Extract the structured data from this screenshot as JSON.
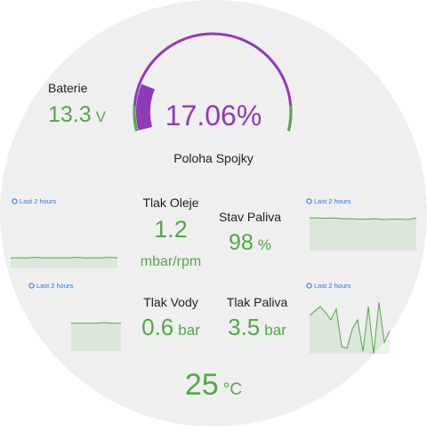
{
  "gauge": {
    "title": "Poloha Spojky",
    "value": 17.06,
    "unit": "%",
    "min": 0,
    "max": 100,
    "color": "#8f3bb8",
    "thresholds": [
      {
        "from": 0,
        "to": 9,
        "color": "#56a64b"
      },
      {
        "from": 91,
        "to": 100,
        "color": "#56a64b"
      }
    ]
  },
  "value_color": "#56a64b",
  "stats": [
    {
      "label": "Baterie",
      "value": 13.3,
      "unit": "V"
    },
    {
      "label": "Tlak Oleje",
      "value": 1.2,
      "unit": "mbar/rpm"
    },
    {
      "label": "Stav Paliva",
      "value": 98,
      "unit": "%"
    },
    {
      "label": "Tlak Vody",
      "value": 0.6,
      "unit": "bar"
    },
    {
      "label": "Tlak Paliva",
      "value": 3.5,
      "unit": "bar"
    },
    {
      "value": 25,
      "unit": "°C"
    }
  ],
  "sparklines": [
    {
      "time_range": "Last 2 hours",
      "ylim": [
        0,
        100
      ],
      "values": [
        18,
        18,
        18,
        19,
        18,
        18,
        18,
        18,
        19,
        18,
        18,
        18,
        19,
        18
      ]
    },
    {
      "time_range": "Last 2 hours",
      "ylim": [
        0,
        100
      ],
      "values": [
        80,
        80,
        79,
        80,
        78,
        78,
        77,
        77,
        78,
        76,
        77,
        77,
        76,
        80
      ]
    },
    {
      "time_range": "Last 2 hours",
      "ylim": [
        0,
        100
      ],
      "values": [
        null,
        null,
        null,
        null,
        null,
        48,
        48,
        48,
        48,
        49,
        48,
        48
      ]
    },
    {
      "time_range": "Last 2 hours",
      "ylim": [
        0,
        100
      ],
      "values": [
        63,
        71,
        78,
        68,
        56,
        74,
        12,
        9,
        41,
        56,
        4,
        78,
        0,
        85,
        19,
        38,
        null,
        null,
        null,
        null,
        null
      ]
    }
  ]
}
